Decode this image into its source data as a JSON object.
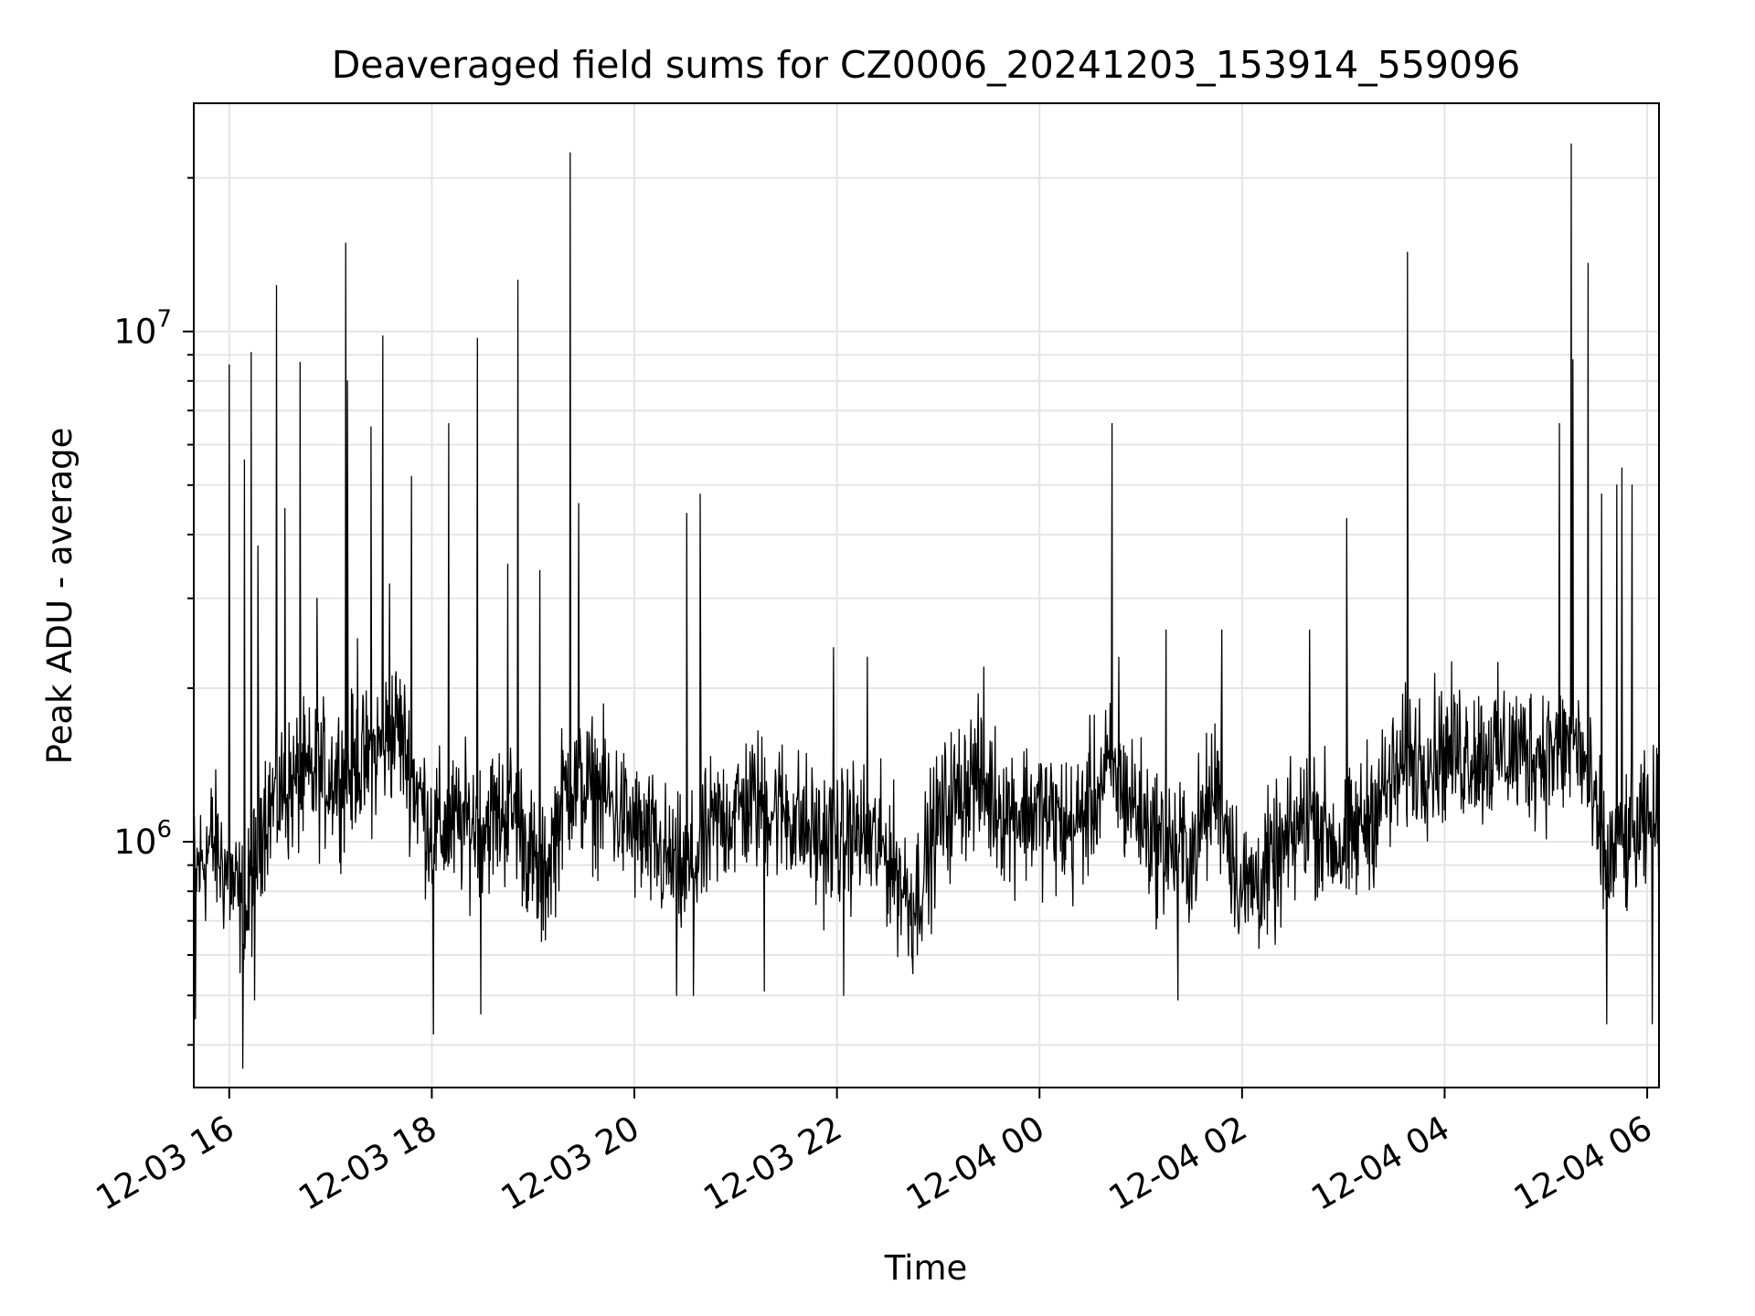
{
  "chart_data": {
    "type": "line",
    "title": "Deaveraged field sums for CZ0006_20241203_153914_559096",
    "xlabel": "Time",
    "ylabel": "Peak ADU - average",
    "x_range": [
      "2024-12-03 15:39",
      "2024-12-04 06:07"
    ],
    "y_scale": "log",
    "ylim": [
      330000,
      28000000
    ],
    "grid": true,
    "line_color": "#000000",
    "grid_color": "#e5e5e5",
    "x_ticks": [
      {
        "value": "2024-12-03 16:00",
        "label": "12-03 16"
      },
      {
        "value": "2024-12-03 18:00",
        "label": "12-03 18"
      },
      {
        "value": "2024-12-03 20:00",
        "label": "12-03 20"
      },
      {
        "value": "2024-12-03 22:00",
        "label": "12-03 22"
      },
      {
        "value": "2024-12-04 00:00",
        "label": "12-04 00"
      },
      {
        "value": "2024-12-04 02:00",
        "label": "12-04 02"
      },
      {
        "value": "2024-12-04 04:00",
        "label": "12-04 04"
      },
      {
        "value": "2024-12-04 06:00",
        "label": "12-04 06"
      }
    ],
    "y_ticks": [
      {
        "value": 1000000,
        "base": "10",
        "exp": "6"
      },
      {
        "value": 10000000,
        "base": "10",
        "exp": "7"
      }
    ],
    "baseline": [
      [
        "2024-12-03 15:39",
        850000
      ],
      [
        "2024-12-03 15:50",
        1000000
      ],
      [
        "2024-12-03 16:00",
        850000
      ],
      [
        "2024-12-03 16:10",
        700000
      ],
      [
        "2024-12-03 16:20",
        1150000
      ],
      [
        "2024-12-03 16:40",
        1300000
      ],
      [
        "2024-12-03 17:00",
        1350000
      ],
      [
        "2024-12-03 17:20",
        1400000
      ],
      [
        "2024-12-03 17:40",
        1700000
      ],
      [
        "2024-12-03 17:50",
        1300000
      ],
      [
        "2024-12-03 18:00",
        1050000
      ],
      [
        "2024-12-03 18:30",
        1100000
      ],
      [
        "2024-12-03 18:50",
        1150000
      ],
      [
        "2024-12-03 19:05",
        800000
      ],
      [
        "2024-12-03 19:20",
        1300000
      ],
      [
        "2024-12-03 19:40",
        1250000
      ],
      [
        "2024-12-03 20:00",
        1050000
      ],
      [
        "2024-12-03 20:30",
        850000
      ],
      [
        "2024-12-03 20:50",
        1100000
      ],
      [
        "2024-12-03 21:10",
        1200000
      ],
      [
        "2024-12-03 21:30",
        1150000
      ],
      [
        "2024-12-03 21:50",
        1000000
      ],
      [
        "2024-12-03 22:10",
        1050000
      ],
      [
        "2024-12-03 22:30",
        950000
      ],
      [
        "2024-12-03 22:45",
        750000
      ],
      [
        "2024-12-03 23:00",
        1100000
      ],
      [
        "2024-12-03 23:20",
        1350000
      ],
      [
        "2024-12-03 23:40",
        1150000
      ],
      [
        "2024-12-04 00:00",
        1150000
      ],
      [
        "2024-12-04 00:20",
        1050000
      ],
      [
        "2024-12-04 00:40",
        1350000
      ],
      [
        "2024-12-04 00:55",
        1200000
      ],
      [
        "2024-12-04 01:10",
        1000000
      ],
      [
        "2024-12-04 01:30",
        950000
      ],
      [
        "2024-12-04 01:45",
        1300000
      ],
      [
        "2024-12-04 02:00",
        800000
      ],
      [
        "2024-12-04 02:20",
        900000
      ],
      [
        "2024-12-04 02:40",
        1150000
      ],
      [
        "2024-12-04 03:00",
        950000
      ],
      [
        "2024-12-04 03:20",
        1200000
      ],
      [
        "2024-12-04 03:40",
        1450000
      ],
      [
        "2024-12-04 04:00",
        1500000
      ],
      [
        "2024-12-04 04:30",
        1500000
      ],
      [
        "2024-12-04 05:00",
        1500000
      ],
      [
        "2024-12-04 05:20",
        1550000
      ],
      [
        "2024-12-04 05:35",
        900000
      ],
      [
        "2024-12-04 05:50",
        1000000
      ],
      [
        "2024-12-04 06:07",
        1100000
      ]
    ],
    "spikes": [
      [
        "2024-12-03 16:00",
        8600000
      ],
      [
        "2024-12-03 16:09",
        5600000
      ],
      [
        "2024-12-03 16:13",
        9100000
      ],
      [
        "2024-12-03 16:17",
        3800000
      ],
      [
        "2024-12-03 16:28",
        12300000
      ],
      [
        "2024-12-03 16:33",
        4500000
      ],
      [
        "2024-12-03 16:42",
        8700000
      ],
      [
        "2024-12-03 16:52",
        3000000
      ],
      [
        "2024-12-03 17:09",
        14900000
      ],
      [
        "2024-12-03 17:10",
        8000000
      ],
      [
        "2024-12-03 17:16",
        2500000
      ],
      [
        "2024-12-03 17:24",
        6500000
      ],
      [
        "2024-12-03 17:31",
        9800000
      ],
      [
        "2024-12-03 17:35",
        3200000
      ],
      [
        "2024-12-03 17:48",
        5200000
      ],
      [
        "2024-12-03 18:10",
        6600000
      ],
      [
        "2024-12-03 18:27",
        9700000
      ],
      [
        "2024-12-03 18:45",
        3500000
      ],
      [
        "2024-12-03 18:51",
        12600000
      ],
      [
        "2024-12-03 19:04",
        3400000
      ],
      [
        "2024-12-03 19:22",
        22400000
      ],
      [
        "2024-12-03 19:27",
        4600000
      ],
      [
        "2024-12-03 20:31",
        4400000
      ],
      [
        "2024-12-03 20:39",
        4800000
      ],
      [
        "2024-12-03 21:58",
        2400000
      ],
      [
        "2024-12-03 22:18",
        2300000
      ],
      [
        "2024-12-03 23:27",
        2200000
      ],
      [
        "2024-12-04 00:43",
        6600000
      ],
      [
        "2024-12-04 00:47",
        2300000
      ],
      [
        "2024-12-04 01:15",
        2600000
      ],
      [
        "2024-12-04 01:48",
        2600000
      ],
      [
        "2024-12-04 02:40",
        2600000
      ],
      [
        "2024-12-04 03:02",
        4300000
      ],
      [
        "2024-12-04 03:38",
        14300000
      ],
      [
        "2024-12-04 05:08",
        6600000
      ],
      [
        "2024-12-04 05:15",
        23300000
      ],
      [
        "2024-12-04 05:16",
        8800000
      ],
      [
        "2024-12-04 05:25",
        13600000
      ],
      [
        "2024-12-04 05:33",
        4800000
      ],
      [
        "2024-12-04 05:42",
        5000000
      ],
      [
        "2024-12-04 05:45",
        5400000
      ],
      [
        "2024-12-04 05:51",
        5000000
      ]
    ],
    "dips": [
      [
        "2024-12-03 15:40",
        450000
      ],
      [
        "2024-12-03 16:08",
        360000
      ],
      [
        "2024-12-03 16:15",
        490000
      ],
      [
        "2024-12-03 18:01",
        420000
      ],
      [
        "2024-12-03 18:29",
        460000
      ],
      [
        "2024-12-03 20:25",
        500000
      ],
      [
        "2024-12-03 20:35",
        500000
      ],
      [
        "2024-12-03 21:17",
        510000
      ],
      [
        "2024-12-03 22:04",
        500000
      ],
      [
        "2024-12-04 01:22",
        490000
      ],
      [
        "2024-12-04 05:36",
        440000
      ],
      [
        "2024-12-04 06:03",
        440000
      ]
    ]
  }
}
